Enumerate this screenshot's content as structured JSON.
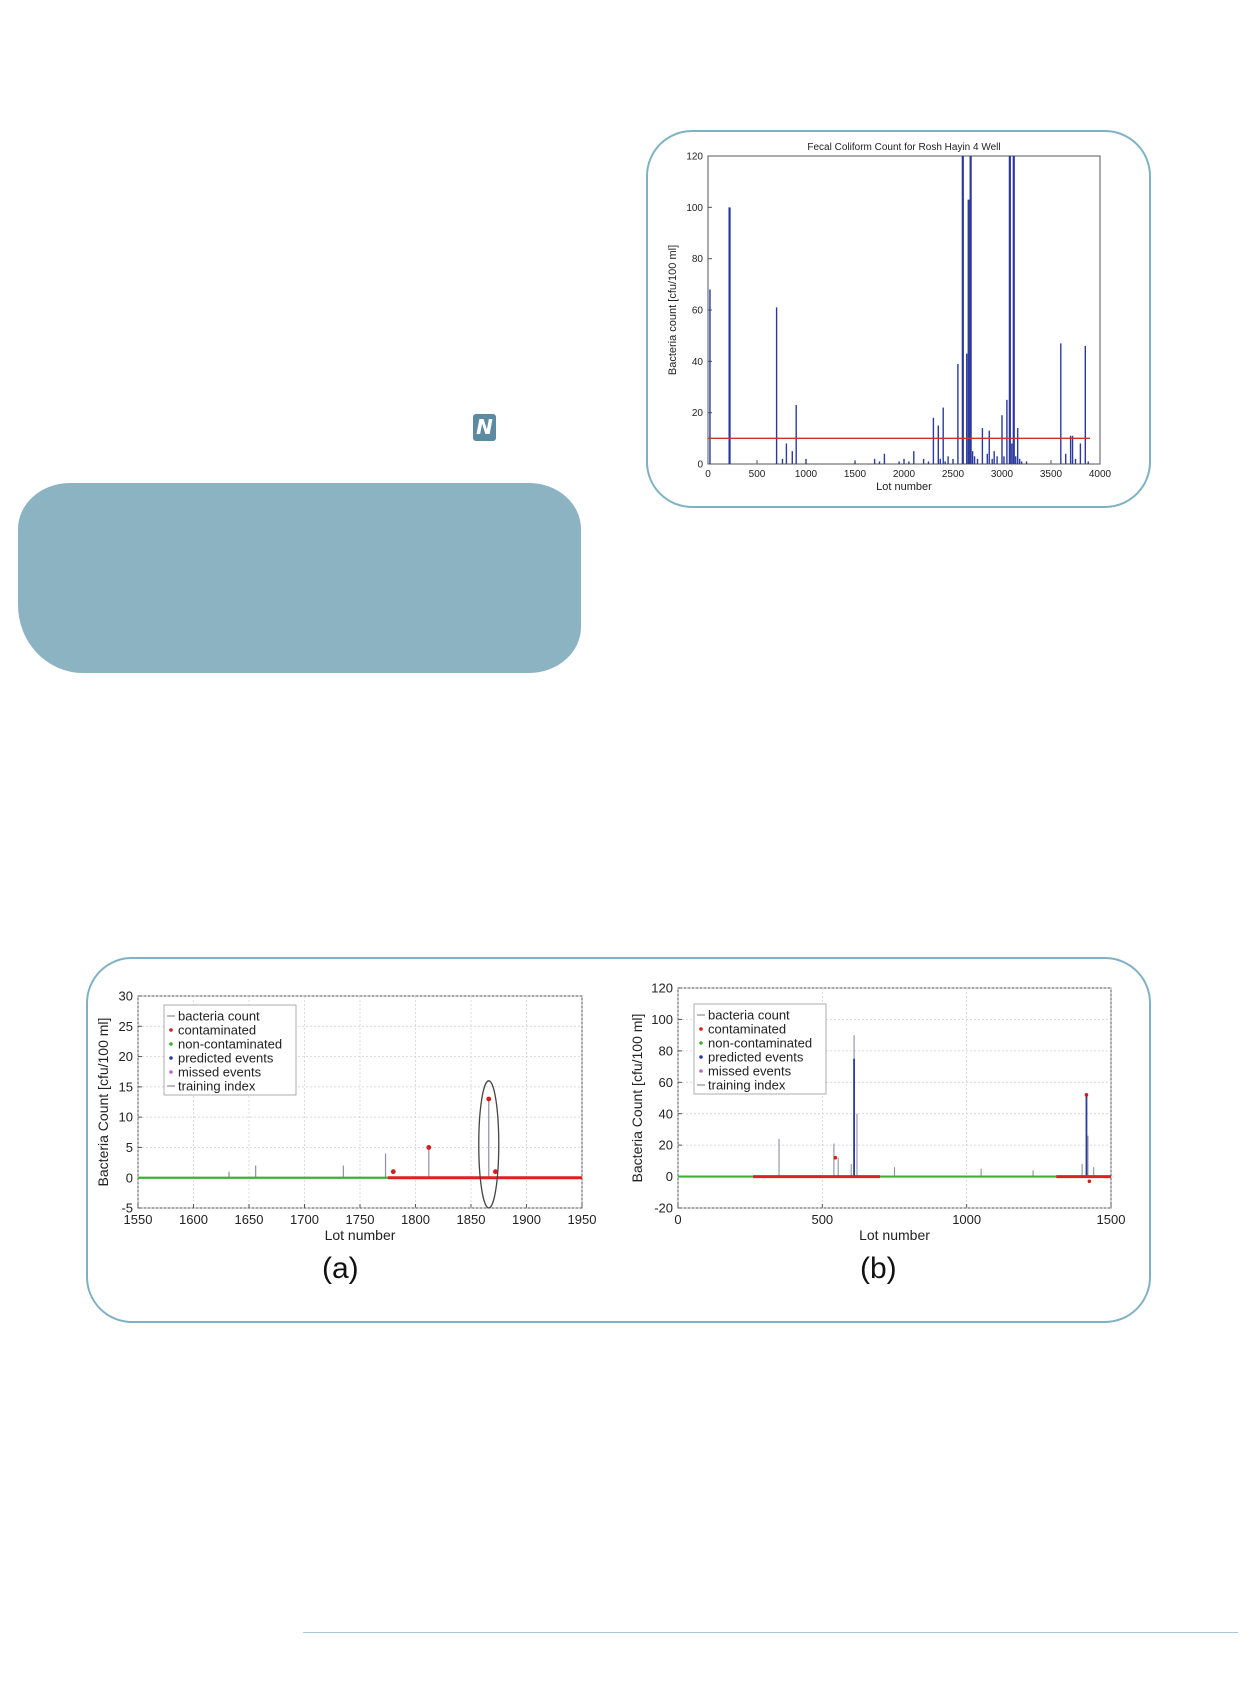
{
  "logo": {
    "glyph": "N"
  },
  "chart_data": [
    {
      "type": "bar",
      "title": "Fecal Coliform Count for Rosh Hayin 4 Well",
      "xlabel": "Lot number",
      "ylabel": "Bacteria count [cfu/100 ml]",
      "xlim": [
        0,
        4000
      ],
      "ylim": [
        0,
        120
      ],
      "xticks": [
        0,
        500,
        1000,
        1500,
        2000,
        2500,
        3000,
        3500,
        4000
      ],
      "yticks": [
        0,
        20,
        40,
        60,
        80,
        100,
        120
      ],
      "threshold": 10,
      "colors": {
        "bars": "#2b3a9c",
        "threshold": "#c0392b"
      },
      "series": [
        {
          "x": [
            20,
            220,
            700,
            760,
            800,
            860,
            900,
            1000,
            1500,
            1700,
            1750,
            1800,
            1950,
            2000,
            2050,
            2100,
            2200,
            2250,
            2300,
            2350,
            2370,
            2400,
            2420,
            2450,
            2500,
            2550,
            2600,
            2640,
            2660,
            2680,
            2700,
            2720,
            2750,
            2800,
            2850,
            2870,
            2900,
            2920,
            2950,
            3000,
            3020,
            3050,
            3080,
            3100,
            3120,
            3140,
            3160,
            3180,
            3200,
            3250,
            3600,
            3650,
            3700,
            3720,
            3750,
            3800,
            3850,
            3880
          ],
          "values": [
            68,
            100,
            61,
            2,
            8,
            5,
            23,
            2,
            1,
            2,
            1,
            4,
            1,
            2,
            1,
            5,
            2,
            1,
            18,
            15,
            2,
            22,
            1,
            3,
            2,
            39,
            120,
            43,
            103,
            120,
            5,
            3,
            2,
            14,
            4,
            13,
            2,
            5,
            3,
            19,
            3,
            25,
            120,
            8,
            120,
            3,
            14,
            2,
            1,
            1,
            47,
            4,
            11,
            11,
            2,
            8,
            46,
            1
          ]
        }
      ]
    },
    {
      "type": "line",
      "panel": "(a)",
      "xlabel": "Lot number",
      "ylabel": "Bacteria Count [cfu/100 ml]",
      "xlim": [
        1550,
        1950
      ],
      "ylim": [
        -5,
        30
      ],
      "xticks": [
        1550,
        1600,
        1650,
        1700,
        1750,
        1800,
        1850,
        1900,
        1950
      ],
      "yticks": [
        -5,
        0,
        5,
        10,
        15,
        20,
        25,
        30
      ],
      "legend": [
        "bacteria count",
        "contaminated",
        "non-contaminated",
        "predicted events",
        "missed events",
        "training index"
      ],
      "legend_position": "top-left",
      "training_range": [
        1550,
        1775
      ],
      "prediction_range": [
        1775,
        1950
      ],
      "colors": {
        "train": "#3fb034",
        "predict": "#e0201e",
        "stems": "#8e8ea6",
        "contaminated": "#d81b1b"
      },
      "stems": {
        "x": [
          1632,
          1656,
          1735,
          1773,
          1812,
          1866
        ],
        "values": [
          1,
          2,
          2,
          4,
          5,
          13
        ]
      },
      "contaminated_points": {
        "x": [
          1780,
          1812,
          1866,
          1872
        ],
        "values": [
          1,
          5,
          13,
          1
        ]
      },
      "annotation": {
        "type": "ellipse",
        "x": 1866,
        "y_range": [
          -5,
          16
        ]
      }
    },
    {
      "type": "line",
      "panel": "(b)",
      "xlabel": "Lot number",
      "ylabel": "Bacteria Count [cfu/100 ml]",
      "xlim": [
        0,
        1500
      ],
      "ylim": [
        -20,
        120
      ],
      "xticks": [
        0,
        500,
        1000,
        1500
      ],
      "yticks": [
        -20,
        0,
        20,
        40,
        60,
        80,
        100,
        120
      ],
      "legend": [
        "bacteria count",
        "contaminated",
        "non-contaminated",
        "predicted events",
        "missed events",
        "training index"
      ],
      "legend_position": "top-left",
      "training_ranges": [
        [
          0,
          260
        ],
        [
          700,
          1310
        ]
      ],
      "prediction_ranges": [
        [
          260,
          700
        ],
        [
          1310,
          1500
        ]
      ],
      "colors": {
        "train": "#3fb034",
        "predict": "#e0201e",
        "stems": "#8e8ea6",
        "spikes": "#2b3a9c",
        "contaminated": "#d81b1b"
      },
      "stems": {
        "x": [
          350,
          540,
          555,
          600,
          610,
          620,
          750,
          1050,
          1230,
          1400,
          1420,
          1440
        ],
        "values": [
          24,
          21,
          12,
          8,
          90,
          40,
          6,
          5,
          4,
          8,
          26,
          6
        ]
      },
      "spikes": {
        "x": [
          610,
          1415
        ],
        "values": [
          75,
          52
        ]
      },
      "contaminated_points": {
        "x": [
          545,
          1415,
          1425
        ],
        "values": [
          12,
          52,
          -3
        ]
      }
    }
  ],
  "panel_labels": {
    "a": "(a)",
    "b": "(b)"
  }
}
